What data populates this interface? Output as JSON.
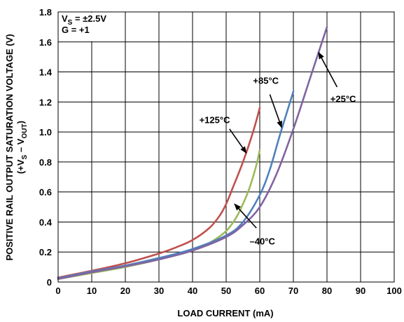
{
  "chart_data": {
    "type": "line",
    "title": "",
    "xlabel": "LOAD CURRENT (mA)",
    "ylabel_line1": "POSITIVE RAIL OUTPUT SATURATION VOLTAGE (V)",
    "ylabel_line2_prefix": "(+V",
    "ylabel_line2_sub1": "S",
    "ylabel_line2_mid": " – V",
    "ylabel_line2_sub2": "OUT",
    "ylabel_line2_suffix": ")",
    "xlim": [
      0,
      100
    ],
    "ylim": [
      0,
      1.8
    ],
    "x_ticks": [
      "0",
      "10",
      "20",
      "30",
      "40",
      "50",
      "60",
      "70",
      "80",
      "90",
      "100"
    ],
    "y_ticks": [
      "0",
      "0.2",
      "0.4",
      "0.6",
      "0.8",
      "1.0",
      "1.2",
      "1.4",
      "1.6",
      "1.8"
    ],
    "grid": true,
    "conditions": {
      "vs_prefix": "V",
      "vs_sub": "S",
      "vs_value": " = ±2.5V",
      "gain": "G = +1"
    },
    "series": [
      {
        "name": "+125°C",
        "color": "#c0504d",
        "points": [
          [
            0,
            0.03
          ],
          [
            10,
            0.075
          ],
          [
            20,
            0.125
          ],
          [
            30,
            0.19
          ],
          [
            35,
            0.23
          ],
          [
            40,
            0.28
          ],
          [
            45,
            0.36
          ],
          [
            48,
            0.44
          ],
          [
            50,
            0.52
          ],
          [
            52,
            0.63
          ],
          [
            55,
            0.8
          ],
          [
            58,
            1.0
          ],
          [
            60,
            1.16
          ]
        ]
      },
      {
        "name": "–40°C",
        "color": "#9bbb59",
        "points": [
          [
            0,
            0.02
          ],
          [
            10,
            0.06
          ],
          [
            20,
            0.1
          ],
          [
            30,
            0.15
          ],
          [
            40,
            0.21
          ],
          [
            45,
            0.26
          ],
          [
            50,
            0.34
          ],
          [
            53,
            0.43
          ],
          [
            55,
            0.52
          ],
          [
            57,
            0.63
          ],
          [
            59,
            0.78
          ],
          [
            60,
            0.88
          ]
        ]
      },
      {
        "name": "+85°C",
        "color": "#4f81bd",
        "points": [
          [
            0,
            0.025
          ],
          [
            10,
            0.07
          ],
          [
            20,
            0.11
          ],
          [
            30,
            0.16
          ],
          [
            40,
            0.22
          ],
          [
            50,
            0.31
          ],
          [
            55,
            0.4
          ],
          [
            60,
            0.58
          ],
          [
            63,
            0.75
          ],
          [
            66,
            0.98
          ],
          [
            70,
            1.27
          ]
        ]
      },
      {
        "name": "+25°C",
        "color": "#8064a2",
        "points": [
          [
            0,
            0.02
          ],
          [
            10,
            0.065
          ],
          [
            20,
            0.105
          ],
          [
            30,
            0.15
          ],
          [
            40,
            0.21
          ],
          [
            50,
            0.3
          ],
          [
            55,
            0.38
          ],
          [
            60,
            0.5
          ],
          [
            65,
            0.72
          ],
          [
            70,
            1.02
          ],
          [
            75,
            1.36
          ],
          [
            80,
            1.7
          ]
        ]
      }
    ],
    "annotations": [
      {
        "text": "+125°C",
        "series": "+125°C",
        "text_at": [
          42,
          1.06
        ],
        "arrow_from": [
          51,
          1.02
        ],
        "arrow_to": [
          56,
          0.86
        ]
      },
      {
        "text": "+85°C",
        "series": "+85°C",
        "text_at": [
          58,
          1.32
        ],
        "arrow_from": [
          63,
          1.25
        ],
        "arrow_to": [
          66.5,
          1.03
        ]
      },
      {
        "text": "+25°C",
        "series": "+25°C",
        "text_at": [
          81,
          1.2
        ],
        "arrow_from": [
          83,
          1.3
        ],
        "arrow_to": [
          77.5,
          1.53
        ]
      },
      {
        "text": "–40°C",
        "series": "–40°C",
        "text_at": [
          57,
          0.25
        ],
        "arrow_from": [
          59,
          0.36
        ],
        "arrow_to": [
          52.5,
          0.52
        ]
      }
    ]
  }
}
